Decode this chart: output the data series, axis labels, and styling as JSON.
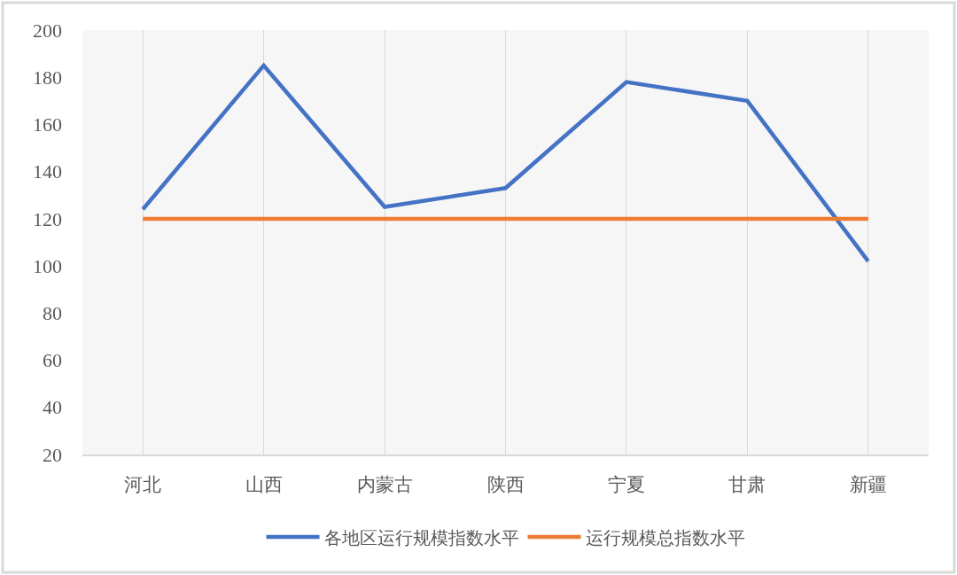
{
  "chart_data": {
    "type": "line",
    "categories": [
      "河北",
      "山西",
      "内蒙古",
      "陕西",
      "宁夏",
      "甘肃",
      "新疆"
    ],
    "series": [
      {
        "name": "各地区运行规模指数水平",
        "color": "#4472c4",
        "values": [
          124,
          185,
          125,
          133,
          178,
          170,
          102
        ]
      },
      {
        "name": "运行规模总指数水平",
        "color": "#ed7d31",
        "values": [
          120,
          120,
          120,
          120,
          120,
          120,
          120
        ]
      }
    ],
    "ylim": [
      20,
      200
    ],
    "yticks": [
      20,
      40,
      60,
      80,
      100,
      120,
      140,
      160,
      180,
      200
    ],
    "grid": "x",
    "legend": "bottom",
    "line_style": "solid"
  }
}
